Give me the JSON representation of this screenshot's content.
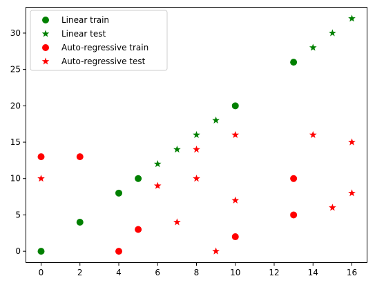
{
  "chart_data": {
    "type": "scatter",
    "title": "",
    "xlabel": "",
    "ylabel": "",
    "xlim": [
      -0.8,
      16.8
    ],
    "ylim": [
      -1.6,
      33.6
    ],
    "xticks": [
      0,
      2,
      4,
      6,
      8,
      10,
      12,
      14,
      16
    ],
    "yticks": [
      0,
      5,
      10,
      15,
      20,
      25,
      30
    ],
    "grid": false,
    "legend_position": "top-left",
    "series": [
      {
        "name": "Linear train",
        "marker": "circle",
        "color": "#008000",
        "points": [
          [
            0,
            0
          ],
          [
            2,
            4
          ],
          [
            4,
            8
          ],
          [
            5,
            10
          ],
          [
            10,
            20
          ],
          [
            13,
            26
          ]
        ]
      },
      {
        "name": "Linear test",
        "marker": "star",
        "color": "#008000",
        "points": [
          [
            6,
            12
          ],
          [
            7,
            14
          ],
          [
            8,
            16
          ],
          [
            9,
            18
          ],
          [
            14,
            28
          ],
          [
            15,
            30
          ],
          [
            16,
            32
          ]
        ]
      },
      {
        "name": "Auto-regressive train",
        "marker": "circle",
        "color": "#ff0000",
        "points": [
          [
            0,
            13
          ],
          [
            2,
            13
          ],
          [
            4,
            0
          ],
          [
            5,
            3
          ],
          [
            10,
            2
          ],
          [
            13,
            10
          ],
          [
            13,
            5
          ]
        ]
      },
      {
        "name": "Auto-regressive test",
        "marker": "star",
        "color": "#ff0000",
        "points": [
          [
            0,
            10
          ],
          [
            6,
            9
          ],
          [
            7,
            4
          ],
          [
            8,
            14
          ],
          [
            8,
            10
          ],
          [
            9,
            0
          ],
          [
            10,
            16
          ],
          [
            10,
            7
          ],
          [
            14,
            16
          ],
          [
            15,
            6
          ],
          [
            16,
            15
          ],
          [
            16,
            8
          ]
        ]
      }
    ]
  }
}
